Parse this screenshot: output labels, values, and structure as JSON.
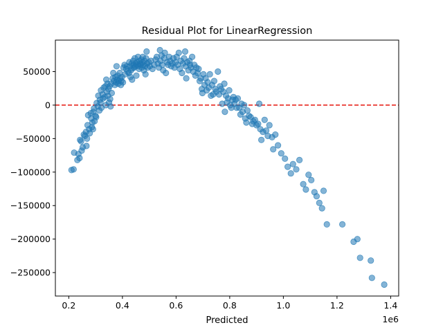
{
  "chart_data": {
    "type": "scatter",
    "title": "Residual Plot for LinearRegression",
    "xlabel": "Predicted",
    "ylabel": "",
    "x_offset_label": "1e6",
    "xlim": [
      150000,
      1430000
    ],
    "ylim": [
      -285000,
      97000
    ],
    "grid": false,
    "legend": "none",
    "x_ticks": [
      200000,
      400000,
      600000,
      800000,
      1000000,
      1200000,
      1400000
    ],
    "x_tick_labels": [
      "0.2",
      "0.4",
      "0.6",
      "0.8",
      "1.0",
      "1.2",
      "1.4"
    ],
    "y_ticks": [
      -250000,
      -200000,
      -150000,
      -100000,
      -50000,
      0,
      50000
    ],
    "y_tick_labels": [
      "−250000",
      "−200000",
      "−150000",
      "−100000",
      "−50000",
      "0",
      "50000"
    ],
    "reference_line": {
      "y": 0,
      "style": "dashed",
      "color": "#e8261e"
    },
    "marker_color": "#1f77b4",
    "marker_alpha": 0.55,
    "series": [
      {
        "points": [
          [
            210000,
            -97000
          ],
          [
            218000,
            -96000
          ],
          [
            220000,
            -71000
          ],
          [
            232000,
            -82000
          ],
          [
            236000,
            -73000
          ],
          [
            240000,
            -79000
          ],
          [
            242000,
            -52000
          ],
          [
            246000,
            -54000
          ],
          [
            248000,
            -68000
          ],
          [
            252000,
            -63000
          ],
          [
            256000,
            -44000
          ],
          [
            260000,
            -46000
          ],
          [
            264000,
            -40000
          ],
          [
            266000,
            -61000
          ],
          [
            268000,
            -50000
          ],
          [
            270000,
            -30000
          ],
          [
            272000,
            -15000
          ],
          [
            276000,
            -36000
          ],
          [
            278000,
            -42000
          ],
          [
            282000,
            -12000
          ],
          [
            284000,
            -20000
          ],
          [
            286000,
            -33000
          ],
          [
            288000,
            -26000
          ],
          [
            290000,
            -36000
          ],
          [
            292000,
            -10000
          ],
          [
            294000,
            -5000
          ],
          [
            296000,
            -24000
          ],
          [
            300000,
            -16000
          ],
          [
            302000,
            -18000
          ],
          [
            304000,
            3000
          ],
          [
            308000,
            -2000
          ],
          [
            310000,
            14000
          ],
          [
            314000,
            -8000
          ],
          [
            316000,
            8000
          ],
          [
            318000,
            4000
          ],
          [
            320000,
            22000
          ],
          [
            322000,
            -4000
          ],
          [
            326000,
            16000
          ],
          [
            328000,
            10000
          ],
          [
            330000,
            26000
          ],
          [
            334000,
            12000
          ],
          [
            336000,
            28000
          ],
          [
            338000,
            0
          ],
          [
            340000,
            38000
          ],
          [
            342000,
            20000
          ],
          [
            344000,
            32000
          ],
          [
            346000,
            14000
          ],
          [
            348000,
            24000
          ],
          [
            350000,
            4000
          ],
          [
            352000,
            28000
          ],
          [
            354000,
            9000
          ],
          [
            356000,
            -2000
          ],
          [
            358000,
            32000
          ],
          [
            360000,
            18000
          ],
          [
            364000,
            40000
          ],
          [
            366000,
            48000
          ],
          [
            368000,
            36000
          ],
          [
            372000,
            30000
          ],
          [
            374000,
            42000
          ],
          [
            376000,
            34000
          ],
          [
            378000,
            58000
          ],
          [
            380000,
            38000
          ],
          [
            382000,
            44000
          ],
          [
            384000,
            32000
          ],
          [
            386000,
            36000
          ],
          [
            390000,
            48000
          ],
          [
            392000,
            40000
          ],
          [
            394000,
            30000
          ],
          [
            396000,
            36000
          ],
          [
            398000,
            42000
          ],
          [
            402000,
            34000
          ],
          [
            404000,
            56000
          ],
          [
            408000,
            60000
          ],
          [
            410000,
            46000
          ],
          [
            414000,
            54000
          ],
          [
            416000,
            58000
          ],
          [
            420000,
            50000
          ],
          [
            424000,
            48000
          ],
          [
            426000,
            64000
          ],
          [
            428000,
            58000
          ],
          [
            430000,
            42000
          ],
          [
            432000,
            52000
          ],
          [
            434000,
            62000
          ],
          [
            436000,
            38000
          ],
          [
            438000,
            55000
          ],
          [
            440000,
            66000
          ],
          [
            442000,
            60000
          ],
          [
            444000,
            56000
          ],
          [
            446000,
            70000
          ],
          [
            448000,
            58000
          ],
          [
            450000,
            62000
          ],
          [
            452000,
            44000
          ],
          [
            454000,
            64000
          ],
          [
            456000,
            60000
          ],
          [
            458000,
            72000
          ],
          [
            460000,
            58000
          ],
          [
            462000,
            54000
          ],
          [
            464000,
            66000
          ],
          [
            466000,
            62000
          ],
          [
            468000,
            60000
          ],
          [
            470000,
            68000
          ],
          [
            472000,
            56000
          ],
          [
            474000,
            64000
          ],
          [
            476000,
            72000
          ],
          [
            478000,
            60000
          ],
          [
            480000,
            52000
          ],
          [
            482000,
            66000
          ],
          [
            484000,
            58000
          ],
          [
            486000,
            46000
          ],
          [
            488000,
            70000
          ],
          [
            490000,
            80000
          ],
          [
            492000,
            62000
          ],
          [
            494000,
            56000
          ],
          [
            498000,
            64000
          ],
          [
            502000,
            58000
          ],
          [
            506000,
            66000
          ],
          [
            512000,
            54000
          ],
          [
            518000,
            60000
          ],
          [
            524000,
            68000
          ],
          [
            528000,
            72000
          ],
          [
            532000,
            62000
          ],
          [
            536000,
            56000
          ],
          [
            540000,
            82000
          ],
          [
            542000,
            66000
          ],
          [
            546000,
            74000
          ],
          [
            548000,
            60000
          ],
          [
            552000,
            52000
          ],
          [
            556000,
            70000
          ],
          [
            558000,
            78000
          ],
          [
            562000,
            48000
          ],
          [
            566000,
            64000
          ],
          [
            570000,
            60000
          ],
          [
            574000,
            72000
          ],
          [
            578000,
            66000
          ],
          [
            582000,
            58000
          ],
          [
            586000,
            62000
          ],
          [
            590000,
            70000
          ],
          [
            594000,
            56000
          ],
          [
            598000,
            64000
          ],
          [
            602000,
            72000
          ],
          [
            606000,
            60000
          ],
          [
            610000,
            78000
          ],
          [
            614000,
            54000
          ],
          [
            618000,
            66000
          ],
          [
            622000,
            48000
          ],
          [
            626000,
            62000
          ],
          [
            630000,
            70000
          ],
          [
            634000,
            80000
          ],
          [
            636000,
            58000
          ],
          [
            638000,
            40000
          ],
          [
            642000,
            64000
          ],
          [
            646000,
            52000
          ],
          [
            650000,
            66000
          ],
          [
            652000,
            60000
          ],
          [
            656000,
            56000
          ],
          [
            660000,
            72000
          ],
          [
            664000,
            50000
          ],
          [
            668000,
            60000
          ],
          [
            672000,
            44000
          ],
          [
            676000,
            56000
          ],
          [
            680000,
            48000
          ],
          [
            684000,
            54000
          ],
          [
            688000,
            36000
          ],
          [
            692000,
            40000
          ],
          [
            696000,
            24000
          ],
          [
            698000,
            18000
          ],
          [
            702000,
            46000
          ],
          [
            706000,
            30000
          ],
          [
            710000,
            40000
          ],
          [
            714000,
            22000
          ],
          [
            718000,
            34000
          ],
          [
            722000,
            26000
          ],
          [
            726000,
            46000
          ],
          [
            730000,
            14000
          ],
          [
            734000,
            30000
          ],
          [
            738000,
            16000
          ],
          [
            742000,
            36000
          ],
          [
            746000,
            24000
          ],
          [
            750000,
            20000
          ],
          [
            756000,
            50000
          ],
          [
            760000,
            16000
          ],
          [
            764000,
            28000
          ],
          [
            768000,
            24000
          ],
          [
            772000,
            2000
          ],
          [
            776000,
            20000
          ],
          [
            780000,
            32000
          ],
          [
            782000,
            -10000
          ],
          [
            786000,
            14000
          ],
          [
            790000,
            4000
          ],
          [
            794000,
            10000
          ],
          [
            798000,
            22000
          ],
          [
            802000,
            0
          ],
          [
            806000,
            -4000
          ],
          [
            810000,
            8000
          ],
          [
            814000,
            12000
          ],
          [
            818000,
            2000
          ],
          [
            822000,
            8000
          ],
          [
            826000,
            -4000
          ],
          [
            830000,
            10000
          ],
          [
            836000,
            -4000
          ],
          [
            840000,
            -14000
          ],
          [
            844000,
            2000
          ],
          [
            848000,
            -10000
          ],
          [
            854000,
            0
          ],
          [
            858000,
            -20000
          ],
          [
            862000,
            -26000
          ],
          [
            866000,
            -8000
          ],
          [
            872000,
            -16000
          ],
          [
            878000,
            -18000
          ],
          [
            884000,
            -28000
          ],
          [
            888000,
            -24000
          ],
          [
            894000,
            -22000
          ],
          [
            900000,
            -30000
          ],
          [
            906000,
            -28000
          ],
          [
            910000,
            2000
          ],
          [
            914000,
            -36000
          ],
          [
            918000,
            -52000
          ],
          [
            924000,
            -40000
          ],
          [
            930000,
            -22000
          ],
          [
            936000,
            -38000
          ],
          [
            942000,
            -46000
          ],
          [
            948000,
            -30000
          ],
          [
            958000,
            -48000
          ],
          [
            962000,
            -66000
          ],
          [
            970000,
            -44000
          ],
          [
            980000,
            -60000
          ],
          [
            992000,
            -72000
          ],
          [
            1006000,
            -80000
          ],
          [
            1016000,
            -92000
          ],
          [
            1028000,
            -102000
          ],
          [
            1036000,
            -88000
          ],
          [
            1048000,
            -96000
          ],
          [
            1060000,
            -82000
          ],
          [
            1074000,
            -118000
          ],
          [
            1084000,
            -126000
          ],
          [
            1094000,
            -104000
          ],
          [
            1104000,
            -112000
          ],
          [
            1116000,
            -130000
          ],
          [
            1124000,
            -136000
          ],
          [
            1134000,
            -146000
          ],
          [
            1144000,
            -154000
          ],
          [
            1150000,
            -128000
          ],
          [
            1162000,
            -178000
          ],
          [
            1220000,
            -178000
          ],
          [
            1262000,
            -204000
          ],
          [
            1276000,
            -200000
          ],
          [
            1286000,
            -228000
          ],
          [
            1326000,
            -232000
          ],
          [
            1330000,
            -258000
          ],
          [
            1376000,
            -268000
          ]
        ]
      }
    ]
  }
}
